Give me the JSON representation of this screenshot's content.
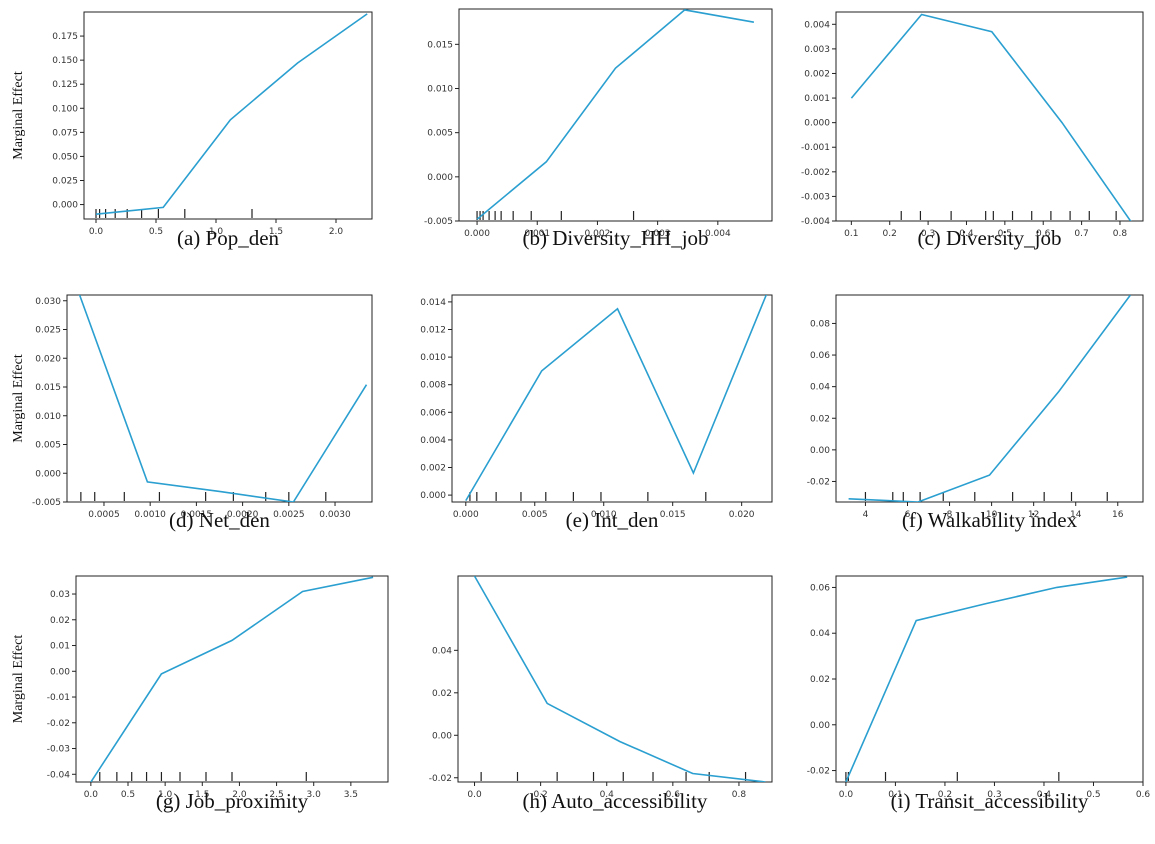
{
  "ylabel_text": "Marginal Effect",
  "line_color": "#2a9fd0",
  "chart_data": [
    {
      "type": "line",
      "caption": "(a) Pop_den",
      "ylabel": "Marginal Effect",
      "xlim": [
        -0.1,
        2.3
      ],
      "ylim": [
        -0.015,
        0.2
      ],
      "xticks": [
        0.0,
        0.5,
        1.0,
        1.5,
        2.0
      ],
      "xtick_labels": [
        "0.0",
        "0.5",
        "1.0",
        "1.5",
        "2.0"
      ],
      "yticks": [
        0.0,
        0.025,
        0.05,
        0.075,
        0.1,
        0.125,
        0.15,
        0.175
      ],
      "ytick_labels": [
        "0.000",
        "0.025",
        "0.050",
        "0.075",
        "0.100",
        "0.125",
        "0.150",
        "0.175"
      ],
      "x": [
        0.0,
        0.56,
        1.12,
        1.68,
        2.26
      ],
      "y": [
        -0.01,
        -0.003,
        0.088,
        0.147,
        0.198
      ],
      "rug": [
        0.0,
        0.03,
        0.08,
        0.16,
        0.26,
        0.38,
        0.52,
        0.74,
        1.3
      ]
    },
    {
      "type": "line",
      "caption": "(b) Diversity_HH_job",
      "ylabel": "",
      "xlim": [
        -0.0003,
        0.0049
      ],
      "ylim": [
        -0.005,
        0.019
      ],
      "xticks": [
        0.0,
        0.001,
        0.002,
        0.003,
        0.004
      ],
      "xtick_labels": [
        "0.000",
        "0.001",
        "0.002",
        "0.003",
        "0.004"
      ],
      "yticks": [
        -0.005,
        0.0,
        0.005,
        0.01,
        0.015
      ],
      "ytick_labels": [
        "-0.005",
        "0.000",
        "0.005",
        "0.010",
        "0.015"
      ],
      "x": [
        0.0,
        0.00115,
        0.0023,
        0.00345,
        0.0046
      ],
      "y": [
        -0.0048,
        0.0017,
        0.0123,
        0.0189,
        0.0175
      ],
      "rug": [
        0.0,
        5e-05,
        0.0001,
        0.0002,
        0.0003,
        0.0004,
        0.0006,
        0.0009,
        0.0014,
        0.0026
      ]
    },
    {
      "type": "line",
      "caption": "(c) Diversity_job",
      "ylabel": "",
      "xlim": [
        0.06,
        0.86
      ],
      "ylim": [
        -0.004,
        0.0045
      ],
      "xticks": [
        0.1,
        0.2,
        0.3,
        0.4,
        0.5,
        0.6,
        0.7,
        0.8
      ],
      "xtick_labels": [
        "0.1",
        "0.2",
        "0.3",
        "0.4",
        "0.5",
        "0.6",
        "0.7",
        "0.8"
      ],
      "yticks": [
        -0.004,
        -0.003,
        -0.002,
        -0.001,
        0.0,
        0.001,
        0.002,
        0.003,
        0.004
      ],
      "ytick_labels": [
        "-0.004",
        "-0.003",
        "-0.002",
        "-0.001",
        "0.000",
        "0.001",
        "0.002",
        "0.003",
        "0.004"
      ],
      "x": [
        0.1,
        0.283,
        0.466,
        0.649,
        0.832
      ],
      "y": [
        0.001,
        0.0044,
        0.0037,
        0.0,
        -0.0041
      ],
      "rug": [
        0.23,
        0.28,
        0.36,
        0.45,
        0.47,
        0.52,
        0.57,
        0.62,
        0.67,
        0.72,
        0.79
      ]
    },
    {
      "type": "line",
      "caption": "(d) Net_den",
      "ylabel": "Marginal Effect",
      "xlim": [
        0.0001,
        0.0034
      ],
      "ylim": [
        -0.005,
        0.031
      ],
      "xticks": [
        0.0005,
        0.001,
        0.0015,
        0.002,
        0.0025,
        0.003
      ],
      "xtick_labels": [
        "0.0005",
        "0.0010",
        "0.0015",
        "0.0020",
        "0.0025",
        "0.0030"
      ],
      "yticks": [
        -0.005,
        0.0,
        0.005,
        0.01,
        0.015,
        0.02,
        0.025,
        0.03
      ],
      "ytick_labels": [
        "-0.005",
        "0.000",
        "0.005",
        "0.010",
        "0.015",
        "0.020",
        "0.025",
        "0.030"
      ],
      "x": [
        0.00018,
        0.00097,
        0.00176,
        0.00255,
        0.00334
      ],
      "y": [
        0.0335,
        -0.0015,
        -0.0032,
        -0.005,
        0.0154
      ],
      "rug": [
        0.00025,
        0.0004,
        0.00072,
        0.0011,
        0.0016,
        0.0019,
        0.00225,
        0.0025,
        0.0029
      ]
    },
    {
      "type": "line",
      "caption": "(e) Int_den",
      "ylabel": "",
      "xlim": [
        -0.001,
        0.0222
      ],
      "ylim": [
        -0.0005,
        0.0145
      ],
      "xticks": [
        0.0,
        0.005,
        0.01,
        0.015,
        0.02
      ],
      "xtick_labels": [
        "0.000",
        "0.005",
        "0.010",
        "0.015",
        "0.020"
      ],
      "yticks": [
        0.0,
        0.002,
        0.004,
        0.006,
        0.008,
        0.01,
        0.012,
        0.014
      ],
      "ytick_labels": [
        "0.000",
        "0.002",
        "0.004",
        "0.006",
        "0.008",
        "0.010",
        "0.012",
        "0.014"
      ],
      "x": [
        0.0,
        0.0055,
        0.011,
        0.0165,
        0.0219
      ],
      "y": [
        -0.0004,
        0.009,
        0.0135,
        0.0016,
        0.0148
      ],
      "rug": [
        0.0003,
        0.0008,
        0.0022,
        0.004,
        0.0058,
        0.0078,
        0.0098,
        0.0132,
        0.0174
      ]
    },
    {
      "type": "line",
      "caption": "(f) Walkability index",
      "ylabel": "",
      "xlim": [
        2.6,
        17.2
      ],
      "ylim": [
        -0.033,
        0.098
      ],
      "xticks": [
        4,
        6,
        8,
        10,
        12,
        14,
        16
      ],
      "xtick_labels": [
        "4",
        "6",
        "8",
        "10",
        "12",
        "14",
        "16"
      ],
      "yticks": [
        -0.02,
        0.0,
        0.02,
        0.04,
        0.06,
        0.08
      ],
      "ytick_labels": [
        "-0.02",
        "0.00",
        "0.02",
        "0.04",
        "0.06",
        "0.08"
      ],
      "x": [
        3.2,
        6.5,
        9.9,
        13.2,
        16.6
      ],
      "y": [
        -0.031,
        -0.033,
        -0.016,
        0.037,
        0.098
      ],
      "rug": [
        4.0,
        5.3,
        5.8,
        6.6,
        7.7,
        9.2,
        11.0,
        12.5,
        13.8,
        15.5
      ]
    },
    {
      "type": "line",
      "caption": "(g) Job_proximity",
      "ylabel": "Marginal Effect",
      "xlim": [
        -0.2,
        4.0
      ],
      "ylim": [
        -0.043,
        0.037
      ],
      "xticks": [
        0.0,
        0.5,
        1.0,
        1.5,
        2.0,
        2.5,
        3.0,
        3.5
      ],
      "xtick_labels": [
        "0.0",
        "0.5",
        "1.0",
        "1.5",
        "2.0",
        "2.5",
        "3.0",
        "3.5"
      ],
      "yticks": [
        -0.04,
        -0.03,
        -0.02,
        -0.01,
        0.0,
        0.01,
        0.02,
        0.03
      ],
      "ytick_labels": [
        "-0.04",
        "-0.03",
        "-0.02",
        "-0.01",
        "0.00",
        "0.01",
        "0.02",
        "0.03"
      ],
      "x": [
        0.0,
        0.95,
        1.9,
        2.85,
        3.8
      ],
      "y": [
        -0.043,
        -0.001,
        0.012,
        0.031,
        0.0365
      ],
      "rug": [
        0.12,
        0.35,
        0.55,
        0.75,
        0.95,
        1.2,
        1.55,
        1.9,
        2.9
      ]
    },
    {
      "type": "line",
      "caption": "(h) Auto_accessibility",
      "ylabel": "",
      "xlim": [
        -0.05,
        0.9
      ],
      "ylim": [
        -0.022,
        0.075
      ],
      "xticks": [
        0.0,
        0.2,
        0.4,
        0.6,
        0.8
      ],
      "xtick_labels": [
        "0.0",
        "0.2",
        "0.4",
        "0.6",
        "0.8"
      ],
      "yticks": [
        -0.02,
        0.0,
        0.02,
        0.04
      ],
      "ytick_labels": [
        "-0.02",
        "0.00",
        "0.02",
        "0.04"
      ],
      "x": [
        0.0,
        0.22,
        0.44,
        0.66,
        0.88
      ],
      "y": [
        0.075,
        0.015,
        -0.003,
        -0.018,
        -0.022
      ],
      "rug": [
        0.02,
        0.13,
        0.25,
        0.36,
        0.45,
        0.54,
        0.64,
        0.71,
        0.82
      ]
    },
    {
      "type": "line",
      "caption": "(i) Transit_accessibility",
      "ylabel": "",
      "xlim": [
        -0.02,
        0.6
      ],
      "ylim": [
        -0.025,
        0.065
      ],
      "xticks": [
        0.0,
        0.1,
        0.2,
        0.3,
        0.4,
        0.5,
        0.6
      ],
      "xtick_labels": [
        "0.0",
        "0.1",
        "0.2",
        "0.3",
        "0.4",
        "0.5",
        "0.6"
      ],
      "yticks": [
        -0.02,
        0.0,
        0.02,
        0.04,
        0.06
      ],
      "ytick_labels": [
        "-0.02",
        "0.00",
        "0.02",
        "0.04",
        "0.06"
      ],
      "x": [
        0.0,
        0.142,
        0.284,
        0.426,
        0.568
      ],
      "y": [
        -0.025,
        0.0455,
        0.053,
        0.06,
        0.0645
      ],
      "rug": [
        0.0,
        0.005,
        0.08,
        0.225,
        0.43
      ]
    }
  ]
}
